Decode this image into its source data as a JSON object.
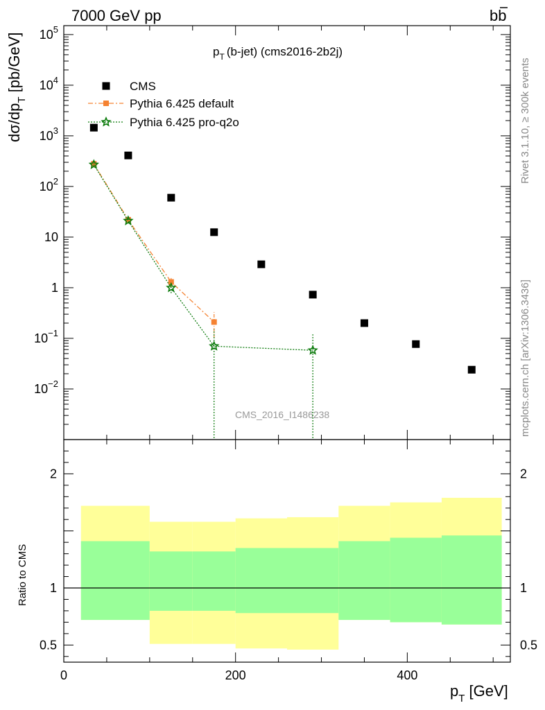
{
  "header": {
    "left": "7000 GeV pp",
    "right_main": "b",
    "right_bar": "b"
  },
  "title": {
    "main": "p",
    "sub": "T",
    "rest": "(b-jet) (cms2016-2b2j)"
  },
  "side_texts": {
    "rivet": "Rivet 3.1.10, ≥ 300k events",
    "mcplots": "mcplots.cern.ch [arXiv:1306.3436]"
  },
  "watermark": "CMS_2016_I1486238",
  "colors": {
    "cms": "#000000",
    "default": "#f58231",
    "proq2o": "#0a7a0a",
    "band_outer": "#ffff99",
    "band_inner": "#99ff99"
  },
  "chart_data": [
    {
      "type": "scatter",
      "panel": "main",
      "ylabel": "dσ/dp_T [pb/GeV]",
      "yscale": "log",
      "xlim": [
        0,
        520
      ],
      "ylim": [
        0.001,
        150000
      ],
      "y_tick_labels": [
        "10^-2",
        "10^-1",
        "1",
        "10",
        "10^2",
        "10^3",
        "10^4",
        "10^5"
      ],
      "legend_position": "top-left",
      "series": [
        {
          "name": "CMS",
          "style": "markers-square",
          "x": [
            35,
            75,
            125,
            175,
            230,
            290,
            350,
            410,
            475
          ],
          "y": [
            1450,
            410,
            60,
            12.5,
            2.9,
            0.73,
            0.2,
            0.077,
            0.024
          ]
        },
        {
          "name": "Pythia 6.425 default",
          "style": "dashdot-square",
          "x": [
            35,
            75,
            125,
            175
          ],
          "y": [
            280,
            22,
            1.3,
            0.21
          ],
          "yerr_low": [
            260,
            19,
            1.05,
            0.1
          ],
          "yerr_high": [
            300,
            25,
            1.55,
            0.33
          ]
        },
        {
          "name": "Pythia 6.425 pro-q2o",
          "style": "dotted-star",
          "x": [
            35,
            75,
            125,
            175,
            290
          ],
          "y": [
            270,
            21,
            1.0,
            0.07,
            0.058
          ],
          "yerr_low": [
            250,
            19,
            0.78,
            0.0005,
            0.0005
          ],
          "yerr_high": [
            290,
            23,
            1.25,
            0.15,
            0.12
          ]
        }
      ]
    },
    {
      "type": "area",
      "panel": "ratio",
      "ylabel": "Ratio to CMS",
      "xlabel": "p_T [GeV]",
      "xlim": [
        0,
        520
      ],
      "ylim": [
        0.35,
        2.3
      ],
      "x_tick_labels": [
        "0",
        "200",
        "400"
      ],
      "y_tick_labels": [
        "0.5",
        "1",
        "2"
      ],
      "bins": [
        20,
        100,
        150,
        200,
        260,
        320,
        380,
        440,
        510
      ],
      "outer_band": {
        "low": [
          0.72,
          0.51,
          0.51,
          0.47,
          0.46,
          0.72,
          0.7,
          0.68
        ],
        "high": [
          1.72,
          1.58,
          1.58,
          1.61,
          1.62,
          1.72,
          1.75,
          1.79
        ]
      },
      "inner_band": {
        "low": [
          0.72,
          0.8,
          0.8,
          0.78,
          0.78,
          0.72,
          0.7,
          0.68
        ],
        "high": [
          1.41,
          1.32,
          1.32,
          1.35,
          1.35,
          1.41,
          1.44,
          1.46
        ]
      },
      "reference": 1
    }
  ]
}
